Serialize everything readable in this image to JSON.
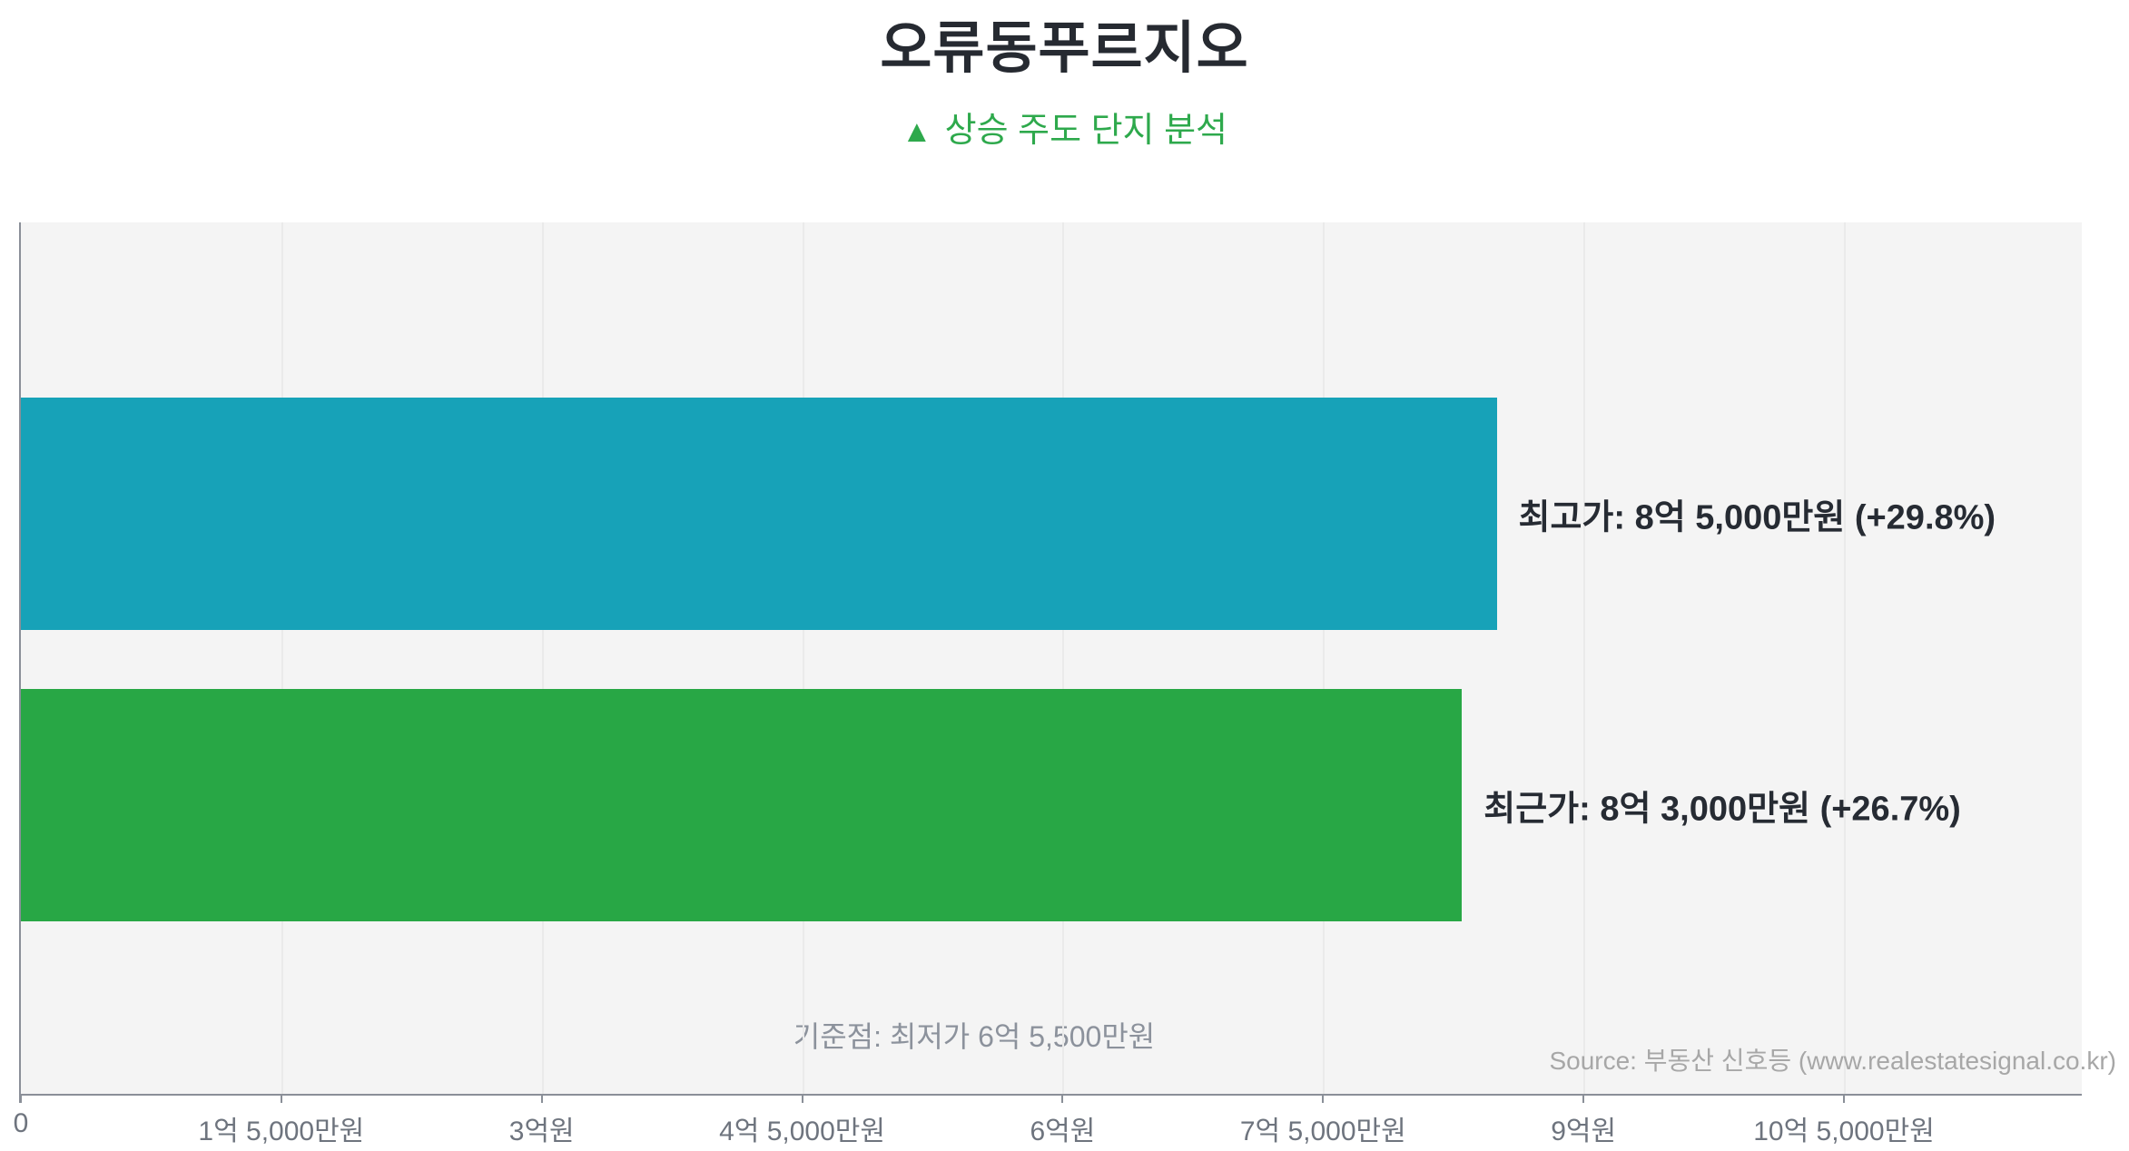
{
  "title": "오류동푸르지오",
  "subtitle": {
    "marker": "▲",
    "text": "상승 주도 단지 분석",
    "color": "#2ea94c"
  },
  "source": "Source: 부동산 신호등 (www.realestatesignal.co.kr)",
  "chart_data": {
    "type": "bar",
    "orientation": "horizontal",
    "unit": "억원",
    "categories": [
      "최고가",
      "최근가"
    ],
    "values": [
      8.5,
      8.3
    ],
    "series": [
      {
        "name": "최고가",
        "value": 8.5,
        "label": "최고가: 8억 5,000만원 (+29.8%)",
        "color": "#17a2b8",
        "change_pct": "+29.8%"
      },
      {
        "name": "최근가",
        "value": 8.3,
        "label": "최근가: 8억 3,000만원 (+26.7%)",
        "color": "#28a745",
        "change_pct": "+26.7%"
      }
    ],
    "baseline_note": "기준점: 최저가 6억 5,500만원",
    "baseline_value": 6.55,
    "xlim": [
      0,
      11.87
    ],
    "x_ticks": [
      {
        "value": 0,
        "label": "0"
      },
      {
        "value": 1.5,
        "label": "1억 5,000만원"
      },
      {
        "value": 3,
        "label": "3억원"
      },
      {
        "value": 4.5,
        "label": "4억 5,000만원"
      },
      {
        "value": 6,
        "label": "6억원"
      },
      {
        "value": 7.5,
        "label": "7억 5,000만원"
      },
      {
        "value": 9,
        "label": "9억원"
      },
      {
        "value": 10.5,
        "label": "10억 5,000만원"
      }
    ],
    "grid": true,
    "legend": false,
    "plot_bg": "#f4f4f4",
    "title": "오류동푸르지오"
  }
}
